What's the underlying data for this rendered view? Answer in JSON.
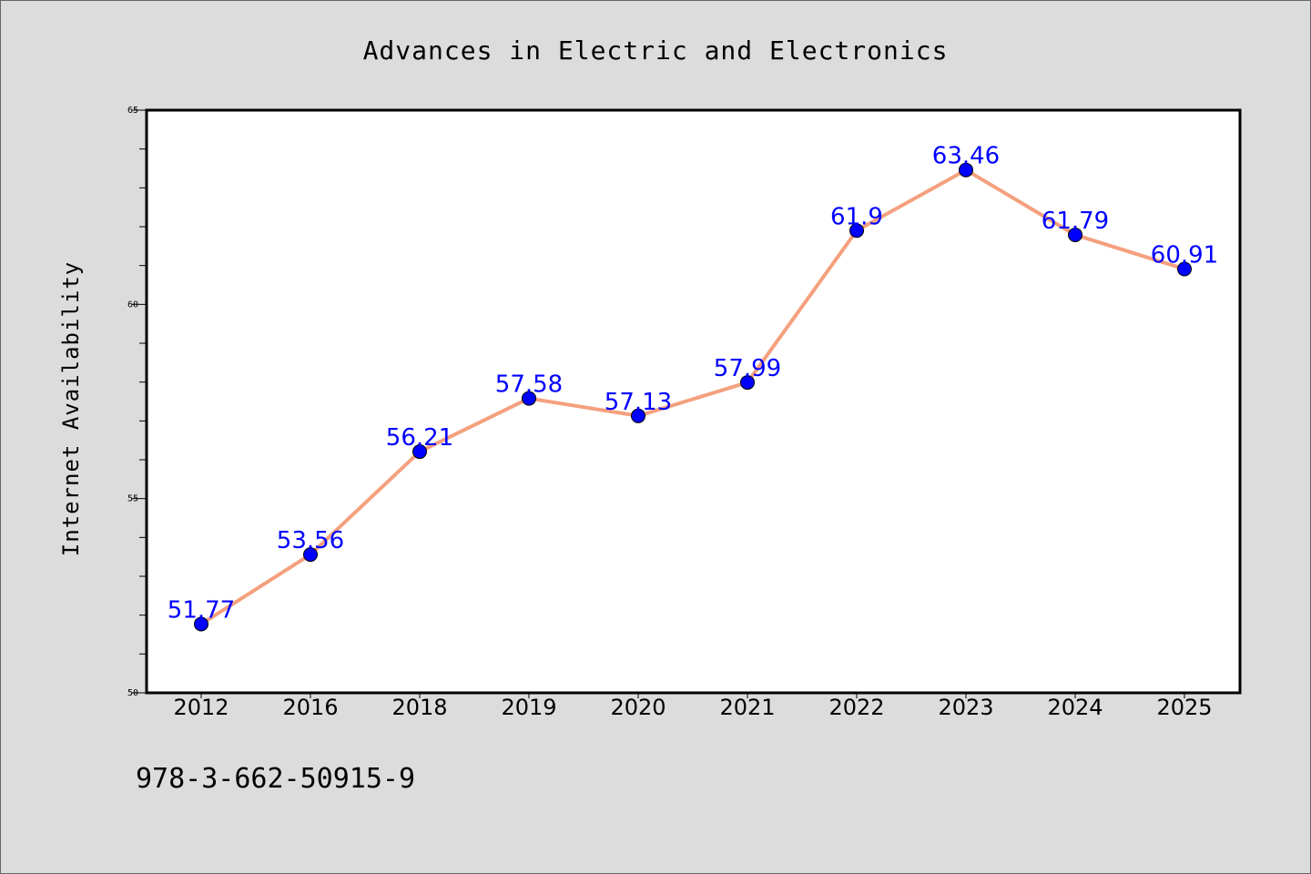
{
  "colors": {
    "background": "#dcdcdc",
    "plot_background": "#ffffff",
    "line": "#f4a07e",
    "marker": "#0000ff",
    "data_label": "#0000ff"
  },
  "chart_data": {
    "type": "line",
    "title": "Advances in Electric and Electronics",
    "xlabel": "",
    "ylabel": "Internet Availability",
    "categories": [
      "2012",
      "2016",
      "2018",
      "2019",
      "2020",
      "2021",
      "2022",
      "2023",
      "2024",
      "2025"
    ],
    "series": [
      {
        "values": [
          51.77,
          53.56,
          56.21,
          57.58,
          57.13,
          57.99,
          61.9,
          63.46,
          61.79,
          60.91
        ]
      }
    ],
    "data_labels": [
      "51.77",
      "53.56",
      "56.21",
      "57.58",
      "57.13",
      "57.99",
      "61.9",
      "63.46",
      "61.79",
      "60.91"
    ],
    "ylim": [
      50,
      65
    ],
    "y_ticks": [
      "50",
      "55",
      "60",
      "65"
    ],
    "grid": false,
    "legend": "none"
  },
  "footer": {
    "text": "978-3-662-50915-9"
  }
}
